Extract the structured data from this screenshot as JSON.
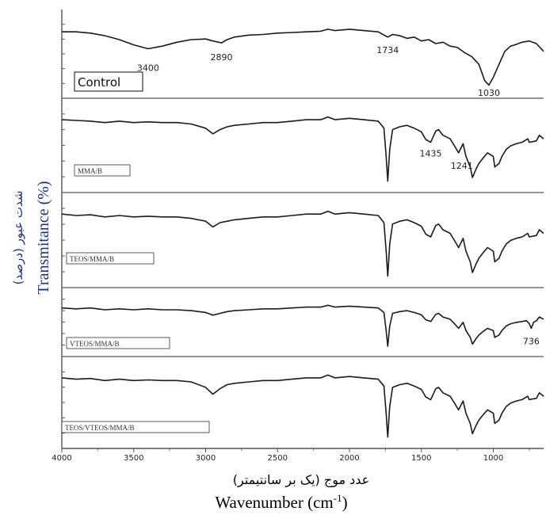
{
  "chart_data": {
    "type": "line",
    "xlabel_fa": "عدد موج (یک بر سانتیمتر)",
    "xlabel": "Wavenumber (cm",
    "xlabel_sup": "-1",
    "xlabel_end": ")",
    "ylabel": "Transmitance (%)",
    "ylabel_fa": "شدت عبور (درصد)",
    "xlim": [
      4000,
      650
    ],
    "x_reversed": true,
    "x_ticks": [
      4000,
      3500,
      3000,
      2500,
      2000,
      1500,
      1000
    ],
    "x_tick_labels": [
      "4000",
      "3500",
      "3000",
      "2500",
      "2000",
      "1500",
      "1000"
    ],
    "grid": false,
    "series": [
      {
        "name": "Control",
        "x": [
          4000,
          3900,
          3800,
          3700,
          3600,
          3500,
          3400,
          3300,
          3200,
          3100,
          3000,
          2950,
          2890,
          2850,
          2800,
          2700,
          2600,
          2500,
          2400,
          2300,
          2200,
          2150,
          2100,
          2000,
          1900,
          1800,
          1734,
          1700,
          1650,
          1600,
          1550,
          1500,
          1450,
          1400,
          1350,
          1300,
          1250,
          1200,
          1150,
          1100,
          1060,
          1030,
          1000,
          960,
          920,
          880,
          850,
          800,
          750,
          700,
          650
        ],
        "y": [
          0.1,
          0.1,
          0.12,
          0.16,
          0.22,
          0.3,
          0.36,
          0.32,
          0.26,
          0.22,
          0.21,
          0.24,
          0.27,
          0.22,
          0.18,
          0.15,
          0.14,
          0.12,
          0.11,
          0.1,
          0.09,
          0.06,
          0.08,
          0.06,
          0.08,
          0.1,
          0.18,
          0.14,
          0.16,
          0.2,
          0.18,
          0.24,
          0.22,
          0.28,
          0.26,
          0.32,
          0.34,
          0.42,
          0.48,
          0.6,
          0.85,
          0.92,
          0.8,
          0.6,
          0.4,
          0.32,
          0.3,
          0.26,
          0.24,
          0.28,
          0.4
        ]
      },
      {
        "name": "MMA/B",
        "x": [
          4000,
          3900,
          3800,
          3700,
          3600,
          3500,
          3400,
          3300,
          3200,
          3100,
          3000,
          2950,
          2900,
          2850,
          2800,
          2700,
          2600,
          2500,
          2400,
          2300,
          2200,
          2150,
          2100,
          2000,
          1900,
          1800,
          1760,
          1745,
          1734,
          1720,
          1700,
          1650,
          1600,
          1550,
          1500,
          1470,
          1435,
          1400,
          1380,
          1350,
          1300,
          1270,
          1241,
          1210,
          1190,
          1160,
          1145,
          1120,
          1100,
          1070,
          1040,
          1000,
          990,
          960,
          940,
          910,
          880,
          840,
          800,
          760,
          750,
          700,
          680,
          650
        ],
        "y": [
          0.08,
          0.09,
          0.1,
          0.12,
          0.1,
          0.12,
          0.11,
          0.12,
          0.12,
          0.14,
          0.2,
          0.28,
          0.22,
          0.18,
          0.16,
          0.14,
          0.12,
          0.12,
          0.1,
          0.08,
          0.08,
          0.04,
          0.08,
          0.06,
          0.08,
          0.1,
          0.2,
          0.6,
          0.95,
          0.5,
          0.22,
          0.18,
          0.16,
          0.2,
          0.25,
          0.36,
          0.4,
          0.24,
          0.22,
          0.3,
          0.35,
          0.45,
          0.55,
          0.42,
          0.6,
          0.75,
          0.9,
          0.78,
          0.7,
          0.62,
          0.55,
          0.6,
          0.75,
          0.7,
          0.6,
          0.5,
          0.45,
          0.42,
          0.4,
          0.35,
          0.4,
          0.38,
          0.3,
          0.35
        ]
      },
      {
        "name": "TEOS/MMA/B",
        "x": [
          4000,
          3900,
          3800,
          3700,
          3600,
          3500,
          3400,
          3300,
          3200,
          3100,
          3000,
          2950,
          2900,
          2850,
          2800,
          2700,
          2600,
          2500,
          2400,
          2300,
          2200,
          2150,
          2100,
          2000,
          1900,
          1800,
          1760,
          1745,
          1734,
          1720,
          1700,
          1650,
          1600,
          1550,
          1500,
          1470,
          1435,
          1400,
          1380,
          1350,
          1300,
          1270,
          1241,
          1210,
          1190,
          1160,
          1145,
          1120,
          1100,
          1070,
          1040,
          1000,
          990,
          960,
          940,
          910,
          880,
          840,
          800,
          760,
          750,
          700,
          680,
          650
        ],
        "y": [
          0.08,
          0.1,
          0.09,
          0.12,
          0.1,
          0.12,
          0.11,
          0.12,
          0.12,
          0.14,
          0.18,
          0.26,
          0.2,
          0.18,
          0.16,
          0.14,
          0.12,
          0.12,
          0.1,
          0.08,
          0.08,
          0.04,
          0.08,
          0.06,
          0.08,
          0.1,
          0.2,
          0.6,
          0.95,
          0.5,
          0.22,
          0.18,
          0.16,
          0.2,
          0.25,
          0.36,
          0.4,
          0.24,
          0.22,
          0.3,
          0.35,
          0.45,
          0.55,
          0.42,
          0.6,
          0.75,
          0.9,
          0.78,
          0.7,
          0.62,
          0.55,
          0.6,
          0.75,
          0.7,
          0.6,
          0.5,
          0.45,
          0.42,
          0.4,
          0.35,
          0.4,
          0.38,
          0.3,
          0.35
        ]
      },
      {
        "name": "VTEOS/MMA/B",
        "x": [
          4000,
          3900,
          3800,
          3700,
          3600,
          3500,
          3400,
          3300,
          3200,
          3100,
          3000,
          2950,
          2900,
          2850,
          2800,
          2700,
          2600,
          2500,
          2400,
          2300,
          2200,
          2150,
          2100,
          2000,
          1900,
          1800,
          1760,
          1745,
          1734,
          1720,
          1700,
          1650,
          1600,
          1550,
          1500,
          1470,
          1435,
          1400,
          1380,
          1350,
          1300,
          1270,
          1241,
          1210,
          1190,
          1160,
          1145,
          1120,
          1100,
          1070,
          1040,
          1000,
          990,
          960,
          940,
          910,
          880,
          840,
          800,
          770,
          750,
          736,
          720,
          700,
          680,
          650
        ],
        "y": [
          0.1,
          0.12,
          0.1,
          0.14,
          0.12,
          0.14,
          0.12,
          0.14,
          0.14,
          0.16,
          0.2,
          0.26,
          0.22,
          0.18,
          0.16,
          0.14,
          0.12,
          0.12,
          0.1,
          0.08,
          0.08,
          0.04,
          0.08,
          0.06,
          0.08,
          0.1,
          0.2,
          0.6,
          0.95,
          0.5,
          0.22,
          0.18,
          0.16,
          0.2,
          0.25,
          0.36,
          0.4,
          0.24,
          0.22,
          0.3,
          0.35,
          0.45,
          0.55,
          0.42,
          0.6,
          0.75,
          0.9,
          0.78,
          0.7,
          0.62,
          0.55,
          0.6,
          0.75,
          0.7,
          0.6,
          0.5,
          0.45,
          0.42,
          0.4,
          0.38,
          0.45,
          0.55,
          0.42,
          0.38,
          0.3,
          0.35
        ]
      },
      {
        "name": "TEOS/VTEOS/MMA/B",
        "x": [
          4000,
          3900,
          3800,
          3700,
          3600,
          3500,
          3400,
          3300,
          3200,
          3100,
          3000,
          2950,
          2900,
          2850,
          2800,
          2700,
          2600,
          2500,
          2400,
          2300,
          2200,
          2150,
          2100,
          2000,
          1900,
          1800,
          1760,
          1745,
          1734,
          1720,
          1700,
          1650,
          1600,
          1550,
          1500,
          1470,
          1435,
          1400,
          1380,
          1350,
          1300,
          1270,
          1241,
          1210,
          1190,
          1160,
          1145,
          1120,
          1100,
          1070,
          1040,
          1000,
          990,
          960,
          940,
          910,
          880,
          840,
          800,
          760,
          750,
          700,
          680,
          650
        ],
        "y": [
          0.08,
          0.1,
          0.09,
          0.12,
          0.1,
          0.12,
          0.11,
          0.12,
          0.12,
          0.14,
          0.22,
          0.32,
          0.24,
          0.18,
          0.16,
          0.14,
          0.12,
          0.12,
          0.1,
          0.08,
          0.08,
          0.04,
          0.08,
          0.06,
          0.08,
          0.1,
          0.2,
          0.6,
          0.95,
          0.5,
          0.22,
          0.18,
          0.16,
          0.2,
          0.25,
          0.36,
          0.4,
          0.24,
          0.22,
          0.3,
          0.35,
          0.45,
          0.55,
          0.42,
          0.6,
          0.75,
          0.9,
          0.78,
          0.7,
          0.62,
          0.55,
          0.6,
          0.75,
          0.7,
          0.6,
          0.5,
          0.45,
          0.42,
          0.4,
          0.35,
          0.4,
          0.38,
          0.3,
          0.35
        ]
      }
    ],
    "annotations": [
      {
        "panel": 0,
        "x": 3400,
        "text": "3400"
      },
      {
        "panel": 0,
        "x": 2890,
        "text": "2890"
      },
      {
        "panel": 0,
        "x": 1734,
        "text": "1734"
      },
      {
        "panel": 0,
        "x": 1030,
        "text": "1030"
      },
      {
        "panel": 1,
        "x": 1435,
        "text": "1435"
      },
      {
        "panel": 1,
        "x": 1241,
        "text": "1241"
      },
      {
        "panel": 3,
        "x": 736,
        "text": "736"
      }
    ],
    "colors": {
      "line": "#1a1a1a",
      "axis": "#555555",
      "ylabel": "#1c2f8c"
    }
  }
}
